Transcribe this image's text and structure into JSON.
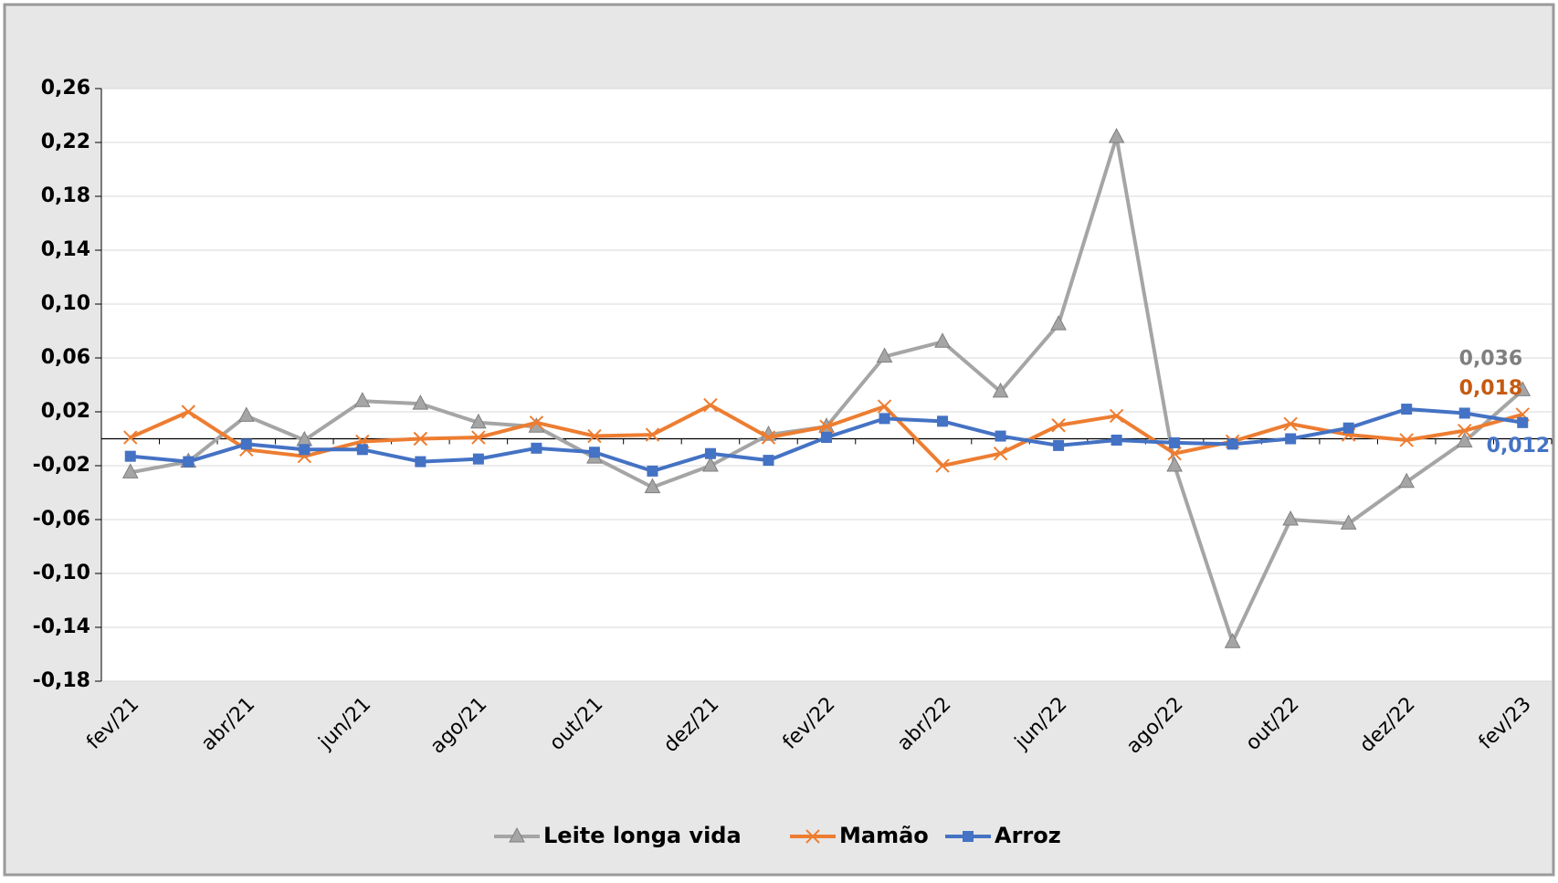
{
  "chart_data": {
    "type": "line",
    "categories": [
      "fev/21",
      null,
      "abr/21",
      null,
      "jun/21",
      null,
      "ago/21",
      null,
      "out/21",
      null,
      "dez/21",
      null,
      "fev/22",
      null,
      "abr/22",
      null,
      "jun/22",
      null,
      "ago/22",
      null,
      "out/22",
      null,
      "dez/22",
      null,
      "fev/23"
    ],
    "series": [
      {
        "name": "Leite longa vida",
        "color": "#a5a5a5",
        "marker": "triangle",
        "values": [
          -0.025,
          -0.017,
          0.017,
          -0.001,
          0.028,
          0.026,
          0.012,
          0.009,
          -0.014,
          -0.036,
          -0.02,
          0.003,
          0.009,
          0.061,
          0.072,
          0.035,
          0.085,
          0.224,
          -0.02,
          -0.151,
          -0.06,
          -0.063,
          -0.032,
          -0.002,
          0.036
        ],
        "value_labels": [
          null,
          null,
          null,
          null,
          null,
          null,
          null,
          null,
          null,
          null,
          null,
          null,
          null,
          null,
          null,
          null,
          null,
          null,
          null,
          null,
          null,
          null,
          null,
          null,
          "0,036"
        ],
        "label_color": "#7f7f7f"
      },
      {
        "name": "Mamão",
        "color": "#ed7d31",
        "marker": "x",
        "values": [
          0.001,
          0.02,
          -0.008,
          -0.013,
          -0.002,
          0.0,
          0.001,
          0.012,
          0.002,
          0.003,
          0.025,
          0.001,
          0.009,
          0.024,
          -0.02,
          -0.011,
          0.01,
          0.017,
          -0.011,
          -0.002,
          0.011,
          0.003,
          -0.001,
          0.006,
          0.018
        ],
        "value_labels": [
          null,
          null,
          null,
          null,
          null,
          null,
          null,
          null,
          null,
          null,
          null,
          null,
          null,
          null,
          null,
          null,
          null,
          null,
          null,
          null,
          null,
          null,
          null,
          null,
          "0,018"
        ],
        "label_color": "#c55a11"
      },
      {
        "name": "Arroz",
        "color": "#4472c4",
        "marker": "square",
        "values": [
          -0.013,
          -0.017,
          -0.004,
          -0.008,
          -0.008,
          -0.017,
          -0.015,
          -0.007,
          -0.01,
          -0.024,
          -0.011,
          -0.016,
          0.001,
          0.015,
          0.013,
          0.002,
          -0.005,
          -0.001,
          -0.003,
          -0.004,
          0.0,
          0.008,
          0.022,
          0.019,
          0.012
        ],
        "value_labels": [
          null,
          null,
          null,
          null,
          null,
          null,
          null,
          null,
          null,
          null,
          null,
          null,
          null,
          null,
          null,
          null,
          null,
          null,
          null,
          null,
          null,
          null,
          null,
          null,
          "0,012"
        ],
        "label_color": "#4472c4"
      }
    ],
    "ylim": [
      -0.18,
      0.26
    ],
    "yticks": [
      {
        "value": -0.18,
        "label": "-0,18"
      },
      {
        "value": -0.14,
        "label": "-0,14"
      },
      {
        "value": -0.1,
        "label": "-0,10"
      },
      {
        "value": -0.06,
        "label": "-0,06"
      },
      {
        "value": -0.02,
        "label": "-0,02"
      },
      {
        "value": 0.02,
        "label": "0,02"
      },
      {
        "value": 0.06,
        "label": "0,06"
      },
      {
        "value": 0.1,
        "label": "0,10"
      },
      {
        "value": 0.14,
        "label": "0,14"
      },
      {
        "value": 0.18,
        "label": "0,18"
      },
      {
        "value": 0.22,
        "label": "0,22"
      },
      {
        "value": 0.26,
        "label": "0,26"
      }
    ],
    "grid": true,
    "legend": "bottom"
  }
}
